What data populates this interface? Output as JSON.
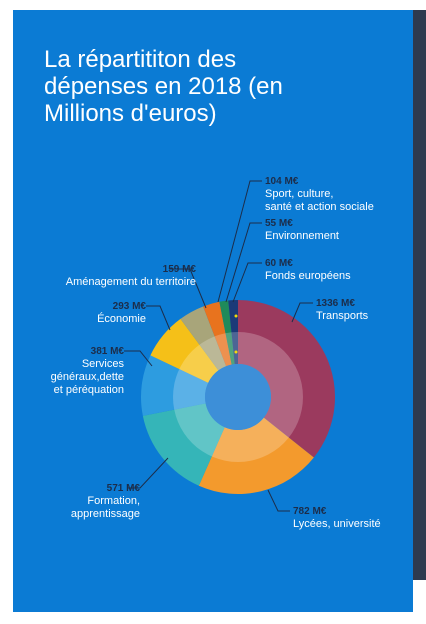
{
  "chart_data": {
    "type": "donut",
    "title": "La répartititon des\ndépenses en 2018 (en\nMillions d'euros)",
    "categories": [
      "Transports",
      "Lycées, université",
      "Formation,\napprentissage",
      "Services\ngénéraux,dette\net péréquation",
      "Économie",
      "Aménagement du territoire",
      "Sport, culture,\nsanté et action sociale",
      "Environnement",
      "Fonds européens"
    ],
    "values": [
      1336,
      782,
      571,
      381,
      293,
      159,
      104,
      55,
      60
    ],
    "value_labels": [
      "1336 M€",
      "782 M€",
      "571 M€",
      "381 M€",
      "293 M€",
      "159 M€",
      "104 M€",
      "55 M€",
      "60 M€"
    ],
    "colors": [
      "#9b3a5e",
      "#f39a2d",
      "#35b5b8",
      "#2d9ce0",
      "#f5c018",
      "#a8a57a",
      "#e8731e",
      "#1f8a5a",
      "#1b3a78"
    ]
  }
}
